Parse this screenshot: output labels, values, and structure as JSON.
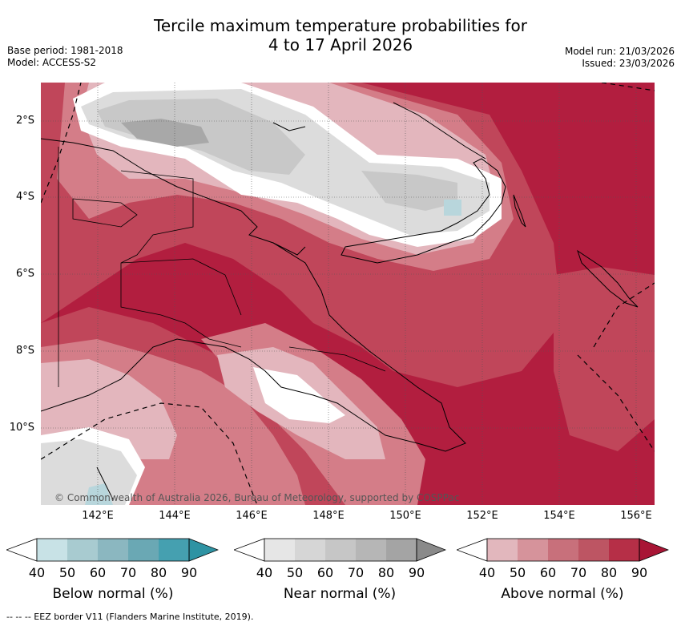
{
  "header": {
    "title_line1": "Tercile maximum temperature probabilities for",
    "title_line2": "4 to 17 April 2026",
    "base_period": "Base period: 1981-2018",
    "model": "Model: ACCESS-S2",
    "model_run": "Model run: 21/03/2026",
    "issued": "Issued: 23/03/2026"
  },
  "map": {
    "latitude_labels": [
      "2°S",
      "4°S",
      "6°S",
      "8°S",
      "10°S"
    ],
    "longitude_labels": [
      "142°E",
      "144°E",
      "146°E",
      "148°E",
      "150°E",
      "152°E",
      "154°E",
      "156°E"
    ],
    "copyright": "© Commonwealth of Australia 2026, Bureau of Meteorology, supported by COSPPac"
  },
  "legends": [
    {
      "title": "Below normal (%)",
      "ticks": [
        "40",
        "50",
        "60",
        "70",
        "80",
        "90"
      ],
      "colors": [
        "#c8e2e6",
        "#a8cbd0",
        "#8bb7c0",
        "#6aa8b4",
        "#45a0b0",
        "#2e93a3"
      ]
    },
    {
      "title": "Near normal (%)",
      "ticks": [
        "40",
        "50",
        "60",
        "70",
        "80",
        "90"
      ],
      "colors": [
        "#e6e6e6",
        "#d6d6d6",
        "#c6c6c6",
        "#b6b6b6",
        "#a4a4a4",
        "#8a8a8a"
      ]
    },
    {
      "title": "Above normal (%)",
      "ticks": [
        "40",
        "50",
        "60",
        "70",
        "80",
        "90"
      ],
      "colors": [
        "#e2b7bd",
        "#d6939b",
        "#c8707b",
        "#bd5563",
        "#b62f47",
        "#a81535"
      ]
    }
  ],
  "footer": {
    "eez_note": "--  --  -- EEZ border V11 (Flanders Marine Institute, 2019)."
  },
  "colors": {
    "above_strong": "#b21e3f",
    "above_med": "#c0465a",
    "above_light": "#d47d88",
    "above_faint": "#e3b6bd",
    "near_light": "#dcdcdc",
    "near_med": "#c8c8c8",
    "near_dark": "#a8a8a8",
    "below_light": "#b8d6dc"
  }
}
